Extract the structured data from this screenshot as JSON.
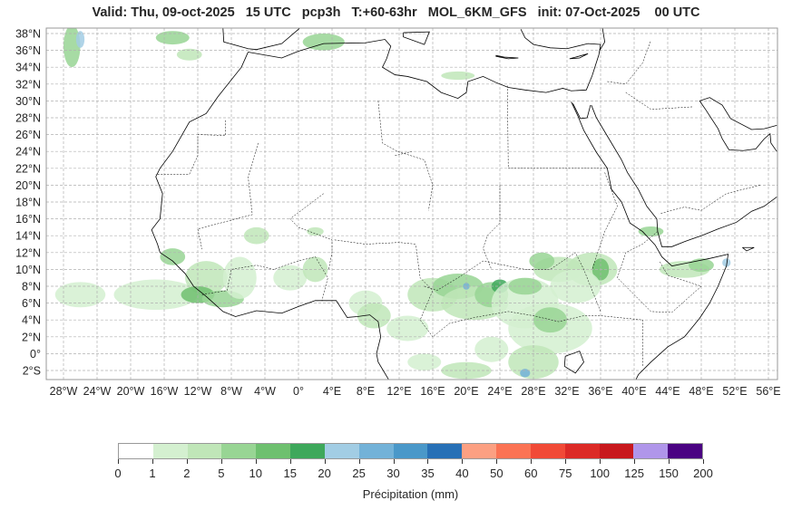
{
  "title": "Valid: Thu, 09-oct-2025   15 UTC   pcp3h   T:+60-63hr   MOL_6KM_GFS   init: 07-Oct-2025    00 UTC",
  "map": {
    "lat_labels": [
      "38°N",
      "36°N",
      "34°N",
      "32°N",
      "30°N",
      "28°N",
      "26°N",
      "24°N",
      "22°N",
      "20°N",
      "18°N",
      "16°N",
      "14°N",
      "12°N",
      "10°N",
      "8°N",
      "6°N",
      "4°N",
      "2°N",
      "0°",
      "2°S"
    ],
    "lat_values": [
      38,
      36,
      34,
      32,
      30,
      28,
      26,
      24,
      22,
      20,
      18,
      16,
      14,
      12,
      10,
      8,
      6,
      4,
      2,
      0,
      -2
    ],
    "lon_labels": [
      "28°W",
      "24°W",
      "20°W",
      "16°W",
      "12°W",
      "8°W",
      "4°W",
      "0°",
      "4°E",
      "8°E",
      "12°E",
      "16°E",
      "20°E",
      "24°E",
      "28°E",
      "32°E",
      "36°E",
      "40°E",
      "44°E",
      "48°E",
      "52°E",
      "56°E"
    ],
    "lon_values": [
      -28,
      -24,
      -20,
      -16,
      -12,
      -8,
      -4,
      0,
      4,
      8,
      12,
      16,
      20,
      24,
      28,
      32,
      36,
      40,
      44,
      48,
      52,
      56
    ]
  },
  "colorbar": {
    "label": "Précipitation (mm)",
    "ticks": [
      "0",
      "1",
      "2",
      "5",
      "10",
      "15",
      "20",
      "25",
      "30",
      "35",
      "40",
      "50",
      "60",
      "75",
      "100",
      "125",
      "150",
      "200"
    ],
    "colors": [
      "#ffffff",
      "#d4f0d0",
      "#c0e6b8",
      "#98d594",
      "#6ec06f",
      "#3ea85b",
      "#a2cde4",
      "#73b2d8",
      "#4a98c9",
      "#2770b6",
      "#fca082",
      "#fb7354",
      "#f14a37",
      "#dc2a26",
      "#c8181d",
      "#b096ea",
      "#4a0282"
    ]
  }
}
